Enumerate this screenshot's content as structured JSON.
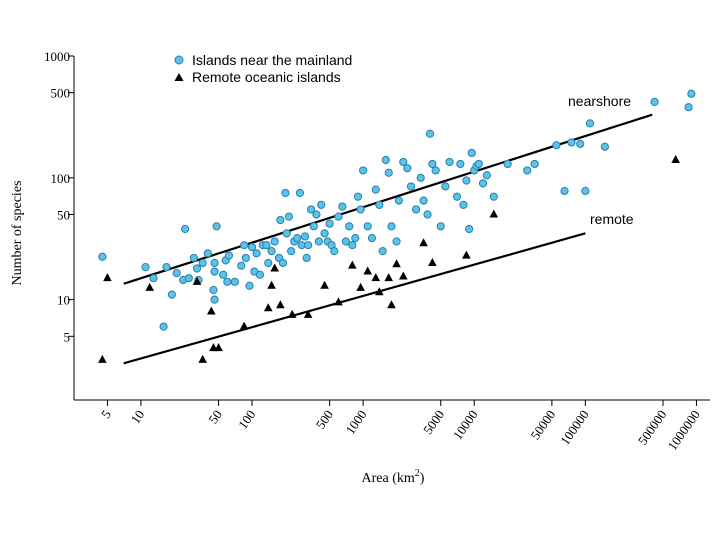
{
  "chart_data": {
    "type": "scatter",
    "title": "",
    "xlabel": "Area (km",
    "xlabel_sup": "2",
    "xlabel_close": ")",
    "ylabel": "Number of species",
    "xscale": "log",
    "yscale": "log",
    "xlim": [
      2.5,
      1500000
    ],
    "ylim": [
      1.5,
      1000
    ],
    "x_ticks": [
      {
        "value": 5,
        "label": "5"
      },
      {
        "value": 10,
        "label": "10"
      },
      {
        "value": 50,
        "label": "50"
      },
      {
        "value": 100,
        "label": "100"
      },
      {
        "value": 500,
        "label": "500"
      },
      {
        "value": 1000,
        "label": "1000"
      },
      {
        "value": 5000,
        "label": "5000"
      },
      {
        "value": 10000,
        "label": "10000"
      },
      {
        "value": 50000,
        "label": "50000"
      },
      {
        "value": 100000,
        "label": "100000"
      },
      {
        "value": 500000,
        "label": "500000"
      },
      {
        "value": 1000000,
        "label": "1000000"
      }
    ],
    "y_ticks": [
      {
        "value": 5,
        "label": "5"
      },
      {
        "value": 10,
        "label": "10"
      },
      {
        "value": 50,
        "label": "50"
      },
      {
        "value": 100,
        "label": "100"
      },
      {
        "value": 500,
        "label": "500"
      },
      {
        "value": 1000,
        "label": "1000"
      }
    ],
    "legend": [
      {
        "label": "Islands near the mainland",
        "marker": "circle",
        "color": "#5bc3ea"
      },
      {
        "label": "Remote oceanic islands",
        "marker": "triangle",
        "color": "#000000"
      }
    ],
    "fit_lines": [
      {
        "name": "nearshore",
        "x": [
          7,
          400000
        ],
        "y": [
          13.5,
          330
        ]
      },
      {
        "name": "remote",
        "x": [
          7,
          100000
        ],
        "y": [
          3.0,
          35
        ]
      }
    ],
    "series": [
      {
        "name": "Islands near the mainland",
        "marker": "circle",
        "color": "#5bc3ea",
        "points": [
          [
            4.5,
            22.5
          ],
          [
            11,
            18.5
          ],
          [
            13,
            15
          ],
          [
            16,
            6
          ],
          [
            17,
            18.5
          ],
          [
            19,
            11
          ],
          [
            21,
            16.5
          ],
          [
            24,
            14.5
          ],
          [
            25,
            38
          ],
          [
            27,
            15
          ],
          [
            30,
            22
          ],
          [
            32,
            18
          ],
          [
            33,
            14.5
          ],
          [
            36,
            20
          ],
          [
            40,
            24
          ],
          [
            45,
            12
          ],
          [
            46,
            20
          ],
          [
            46,
            10
          ],
          [
            46,
            17
          ],
          [
            48,
            40
          ],
          [
            55,
            16
          ],
          [
            58,
            21
          ],
          [
            60,
            14
          ],
          [
            62,
            23
          ],
          [
            70,
            14
          ],
          [
            80,
            19
          ],
          [
            85,
            28
          ],
          [
            88,
            22
          ],
          [
            95,
            13
          ],
          [
            100,
            27
          ],
          [
            105,
            17
          ],
          [
            110,
            24
          ],
          [
            118,
            16
          ],
          [
            125,
            28
          ],
          [
            135,
            28
          ],
          [
            140,
            20
          ],
          [
            150,
            25
          ],
          [
            160,
            30
          ],
          [
            175,
            22
          ],
          [
            180,
            45
          ],
          [
            190,
            20
          ],
          [
            200,
            75
          ],
          [
            205,
            35
          ],
          [
            215,
            48
          ],
          [
            225,
            25
          ],
          [
            240,
            30
          ],
          [
            255,
            32
          ],
          [
            270,
            75
          ],
          [
            280,
            28
          ],
          [
            300,
            33
          ],
          [
            310,
            22
          ],
          [
            320,
            28
          ],
          [
            340,
            55
          ],
          [
            360,
            40
          ],
          [
            380,
            50
          ],
          [
            400,
            30
          ],
          [
            420,
            60
          ],
          [
            450,
            35
          ],
          [
            480,
            30
          ],
          [
            500,
            42
          ],
          [
            520,
            28
          ],
          [
            550,
            25
          ],
          [
            600,
            48
          ],
          [
            650,
            58
          ],
          [
            700,
            30
          ],
          [
            750,
            40
          ],
          [
            800,
            28
          ],
          [
            850,
            32
          ],
          [
            900,
            70
          ],
          [
            950,
            55
          ],
          [
            1000,
            115
          ],
          [
            1100,
            40
          ],
          [
            1200,
            32
          ],
          [
            1300,
            80
          ],
          [
            1400,
            60
          ],
          [
            1500,
            25
          ],
          [
            1600,
            140
          ],
          [
            1700,
            110
          ],
          [
            1800,
            40
          ],
          [
            2000,
            30
          ],
          [
            2100,
            65
          ],
          [
            2300,
            135
          ],
          [
            2500,
            120
          ],
          [
            2700,
            85
          ],
          [
            3000,
            55
          ],
          [
            3300,
            100
          ],
          [
            3500,
            65
          ],
          [
            3800,
            50
          ],
          [
            4000,
            230
          ],
          [
            4200,
            130
          ],
          [
            4500,
            115
          ],
          [
            5000,
            40
          ],
          [
            5500,
            85
          ],
          [
            6000,
            135
          ],
          [
            7000,
            70
          ],
          [
            7500,
            130
          ],
          [
            8000,
            60
          ],
          [
            8500,
            95
          ],
          [
            9000,
            38
          ],
          [
            9500,
            160
          ],
          [
            10000,
            115
          ],
          [
            10500,
            125
          ],
          [
            11000,
            130
          ],
          [
            12000,
            90
          ],
          [
            13000,
            105
          ],
          [
            15000,
            70
          ],
          [
            20000,
            130
          ],
          [
            30000,
            115
          ],
          [
            35000,
            130
          ],
          [
            55000,
            185
          ],
          [
            65000,
            78
          ],
          [
            75000,
            195
          ],
          [
            90000,
            190
          ],
          [
            100000,
            78
          ],
          [
            110000,
            280
          ],
          [
            150000,
            180
          ],
          [
            420000,
            420
          ],
          [
            850000,
            380
          ],
          [
            900000,
            490
          ]
        ]
      },
      {
        "name": "Remote oceanic islands",
        "marker": "triangle",
        "color": "#000000",
        "points": [
          [
            4.5,
            3.2
          ],
          [
            5,
            15
          ],
          [
            12,
            12.5
          ],
          [
            32,
            14
          ],
          [
            36,
            3.2
          ],
          [
            43,
            8
          ],
          [
            45,
            4
          ],
          [
            50,
            4
          ],
          [
            85,
            6
          ],
          [
            140,
            8.5
          ],
          [
            150,
            13
          ],
          [
            160,
            18
          ],
          [
            180,
            9
          ],
          [
            230,
            7.5
          ],
          [
            320,
            7.5
          ],
          [
            450,
            13
          ],
          [
            600,
            9.5
          ],
          [
            800,
            19
          ],
          [
            950,
            12.5
          ],
          [
            1100,
            17
          ],
          [
            1300,
            15
          ],
          [
            1400,
            11.5
          ],
          [
            1700,
            15
          ],
          [
            1800,
            9
          ],
          [
            2000,
            19.5
          ],
          [
            2300,
            15.5
          ],
          [
            3500,
            29
          ],
          [
            4200,
            20
          ],
          [
            8500,
            23
          ],
          [
            15000,
            50
          ],
          [
            650000,
            140
          ]
        ]
      }
    ]
  }
}
